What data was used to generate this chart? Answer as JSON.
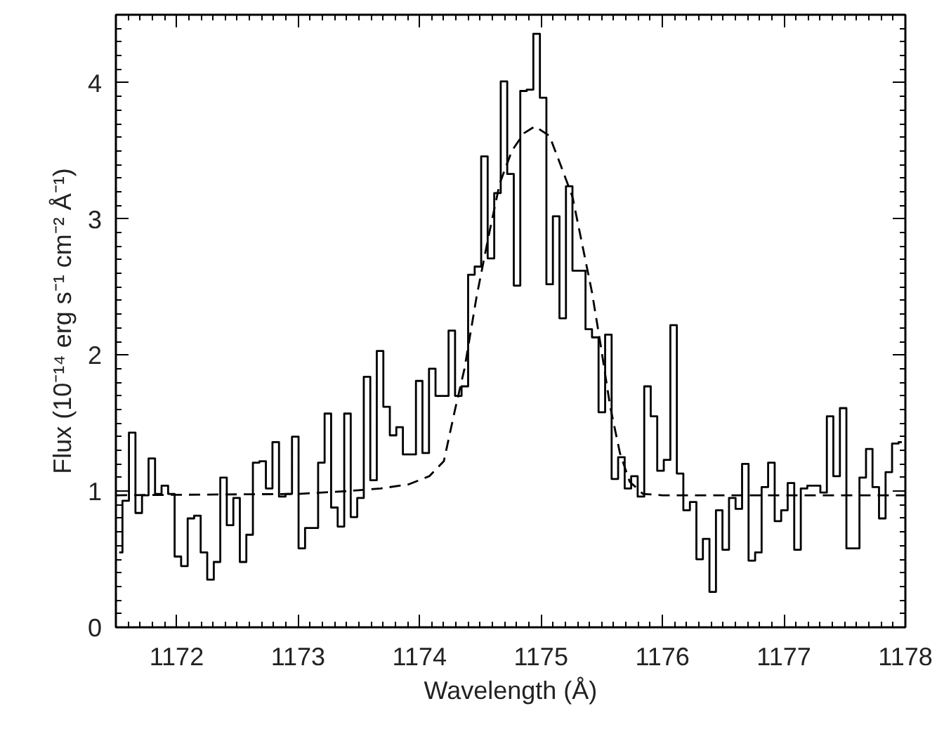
{
  "chart_data": {
    "type": "step",
    "xlabel": "Wavelength (Å)",
    "ylabel": "Flux (10⁻¹⁴ erg s⁻¹ cm⁻² Å⁻¹)",
    "xlim": [
      1171.5,
      1178
    ],
    "ylim": [
      0,
      4.5
    ],
    "xticks": [
      1172,
      1173,
      1174,
      1175,
      1176,
      1177,
      1178
    ],
    "yticks": [
      0,
      1,
      2,
      3,
      4
    ],
    "grid": false,
    "series": [
      {
        "color": "#000000",
        "line_style": "solid",
        "x": [
          1171.527,
          1171.581,
          1171.634,
          1171.688,
          1171.742,
          1171.796,
          1171.849,
          1171.903,
          1171.957,
          1172.01,
          1172.064,
          1172.118,
          1172.171,
          1172.225,
          1172.279,
          1172.333,
          1172.386,
          1172.44,
          1172.494,
          1172.547,
          1172.601,
          1172.655,
          1172.708,
          1172.762,
          1172.816,
          1172.87,
          1172.923,
          1172.977,
          1173.031,
          1173.084,
          1173.138,
          1173.192,
          1173.245,
          1173.299,
          1173.353,
          1173.407,
          1173.46,
          1173.514,
          1173.568,
          1173.621,
          1173.675,
          1173.729,
          1173.782,
          1173.836,
          1173.89,
          1173.944,
          1173.997,
          1174.051,
          1174.105,
          1174.158,
          1174.212,
          1174.266,
          1174.319,
          1174.373,
          1174.427,
          1174.481,
          1174.534,
          1174.588,
          1174.642,
          1174.695,
          1174.749,
          1174.803,
          1174.856,
          1174.91,
          1174.964,
          1175.018,
          1175.071,
          1175.125,
          1175.179,
          1175.232,
          1175.286,
          1175.34,
          1175.393,
          1175.447,
          1175.501,
          1175.555,
          1175.608,
          1175.662,
          1175.716,
          1175.769,
          1175.823,
          1175.877,
          1175.93,
          1175.984,
          1176.038,
          1176.092,
          1176.145,
          1176.199,
          1176.253,
          1176.306,
          1176.36,
          1176.414,
          1176.467,
          1176.521,
          1176.575,
          1176.629,
          1176.682,
          1176.736,
          1176.79,
          1176.843,
          1176.897,
          1176.951,
          1177.004,
          1177.058,
          1177.112,
          1177.166,
          1177.219,
          1177.273,
          1177.327,
          1177.38,
          1177.434,
          1177.488,
          1177.541,
          1177.595,
          1177.649,
          1177.703,
          1177.756,
          1177.81,
          1177.864,
          1177.917,
          1177.971
        ],
        "values": [
          0.55,
          0.93,
          1.43,
          0.84,
          0.97,
          1.24,
          0.98,
          1.04,
          0.98,
          0.52,
          0.45,
          0.8,
          0.82,
          0.55,
          0.35,
          0.48,
          1.1,
          0.75,
          0.95,
          0.48,
          0.68,
          1.21,
          1.22,
          1.02,
          1.36,
          0.96,
          0.98,
          1.4,
          0.58,
          0.73,
          0.73,
          1.21,
          1.57,
          0.88,
          0.74,
          1.57,
          0.81,
          0.95,
          1.84,
          1.08,
          2.03,
          1.62,
          1.41,
          1.47,
          1.27,
          1.27,
          1.81,
          1.28,
          1.9,
          1.7,
          1.7,
          2.18,
          1.7,
          1.77,
          2.59,
          2.65,
          3.46,
          2.71,
          3.19,
          4.01,
          3.33,
          2.51,
          3.94,
          3.95,
          4.36,
          3.89,
          2.52,
          3.02,
          2.27,
          3.24,
          2.62,
          2.62,
          2.19,
          2.13,
          1.58,
          2.15,
          1.09,
          1.25,
          1.02,
          1.11,
          0.96,
          1.77,
          1.55,
          1.15,
          1.23,
          2.22,
          1.13,
          0.86,
          0.92,
          0.5,
          0.65,
          0.26,
          0.86,
          0.57,
          0.95,
          0.87,
          1.2,
          0.49,
          0.55,
          1.03,
          1.21,
          0.78,
          0.86,
          1.06,
          0.57,
          1.02,
          1.04,
          1.04,
          0.99,
          1.55,
          1.11,
          1.61,
          0.58,
          0.58,
          1.1,
          1.31,
          1.03,
          0.8,
          1.14,
          1.35,
          1.36
        ]
      },
      {
        "type": "line",
        "color": "#000000",
        "line_style": "dashed",
        "x": [
          1171.5,
          1173.0,
          1173.4,
          1173.68,
          1173.91,
          1174.08,
          1174.2,
          1174.29,
          1174.37,
          1174.47,
          1174.57,
          1174.66,
          1174.76,
          1174.86,
          1174.95,
          1175.07,
          1175.16,
          1175.26,
          1175.34,
          1175.42,
          1175.49,
          1175.57,
          1175.65,
          1175.73,
          1175.84,
          1176.0,
          1178.0
        ],
        "values": [
          0.97,
          0.98,
          1.0,
          1.02,
          1.05,
          1.11,
          1.22,
          1.59,
          1.9,
          2.43,
          2.88,
          3.26,
          3.5,
          3.63,
          3.68,
          3.61,
          3.4,
          3.16,
          2.81,
          2.46,
          2.08,
          1.62,
          1.28,
          1.07,
          0.98,
          0.97,
          0.97
        ]
      }
    ]
  }
}
